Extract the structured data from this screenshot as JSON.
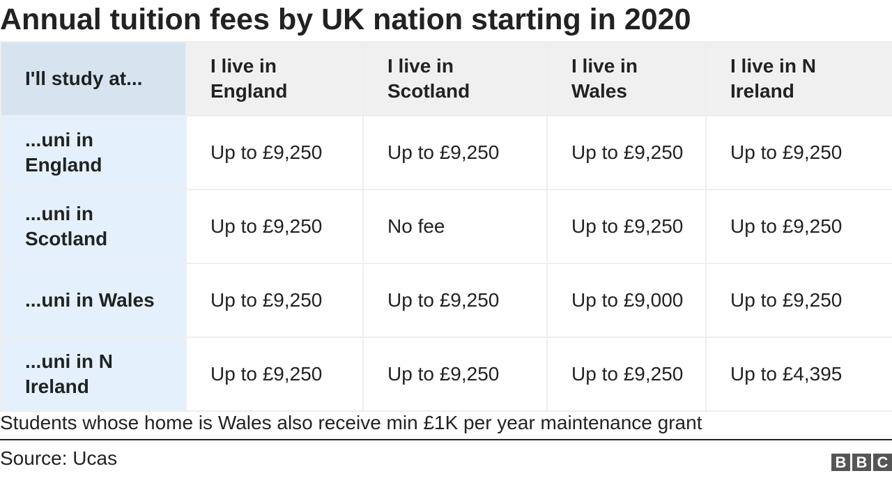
{
  "chart_data": {
    "type": "table",
    "title": "Annual tuition fees by UK nation starting in 2020",
    "corner_label": "I'll study at...",
    "columns": [
      "I live in England",
      "I live in Scotland",
      "I live in Wales",
      "I live in N Ireland"
    ],
    "rows": [
      {
        "label": "...uni in England",
        "cells": [
          "Up to £9,250",
          "Up to £9,250",
          "Up to £9,250",
          "Up to £9,250"
        ]
      },
      {
        "label": "...uni in Scotland",
        "cells": [
          "Up to £9,250",
          "No fee",
          "Up to £9,250",
          "Up to £9,250"
        ]
      },
      {
        "label": "...uni in Wales",
        "cells": [
          "Up to £9,250",
          "Up to £9,250",
          "Up to £9,000",
          "Up to £9,250"
        ]
      },
      {
        "label": "...uni in N Ireland",
        "cells": [
          "Up to £9,250",
          "Up to £9,250",
          "Up to £9,250",
          "Up to £4,395"
        ]
      }
    ],
    "note": "Students whose home is Wales also receive min £1K per year maintenance grant",
    "source": "Source: Ucas"
  },
  "logo": {
    "letters": [
      "B",
      "B",
      "C"
    ]
  },
  "colors": {
    "corner_bg": "#d6e4f0",
    "header_bg": "#f0f0f0",
    "row_header_bg": "#e4f1fc",
    "cell_bg": "#ffffff",
    "border": "#eeeeee",
    "text": "#222222",
    "logo_bg": "#555555"
  }
}
